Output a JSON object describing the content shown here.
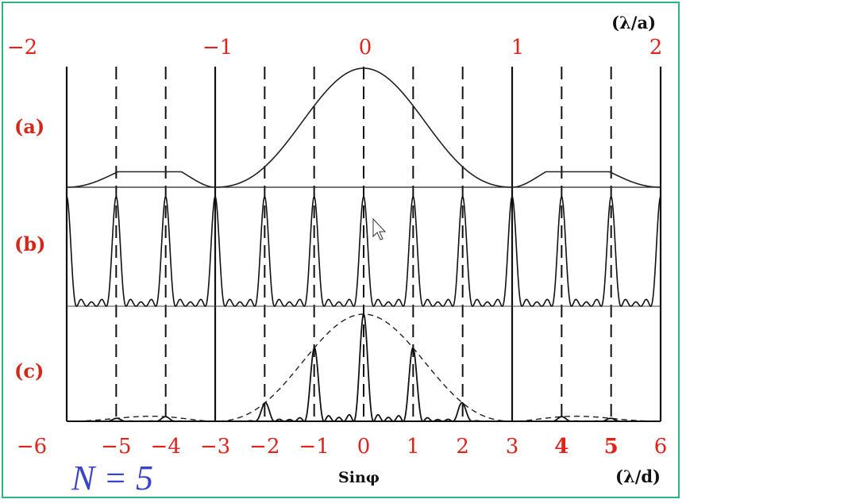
{
  "figure": {
    "top_axis_unit": "(λ/a)",
    "bottom_axis_unit": "(λ/d)",
    "x_label": "Sinφ",
    "n_label": "N = 5",
    "panels": [
      "(a)",
      "(b)",
      "(c)"
    ],
    "top_ticks": [
      "−2",
      "−1",
      "0",
      "1",
      "2"
    ],
    "bottom_ticks": [
      "−6",
      "−5",
      "−4",
      "−3",
      "−2",
      "−1",
      "0",
      "1",
      "2",
      "3",
      "4",
      "5",
      "6"
    ],
    "colors": {
      "frame": "#2db57f",
      "ticks": "#e0241c",
      "n_label": "#3a44c8",
      "lines": "#111111"
    }
  },
  "chart_data": {
    "type": "line",
    "description_units": "x in units of lambda/d (bottom axis); top axis in units of lambda/a, with a = d/3",
    "N": 5,
    "d_over_a": 3,
    "x_range": [
      -6,
      6
    ],
    "missing_orders": [
      -6,
      -3,
      3,
      6
    ],
    "series": []
  }
}
